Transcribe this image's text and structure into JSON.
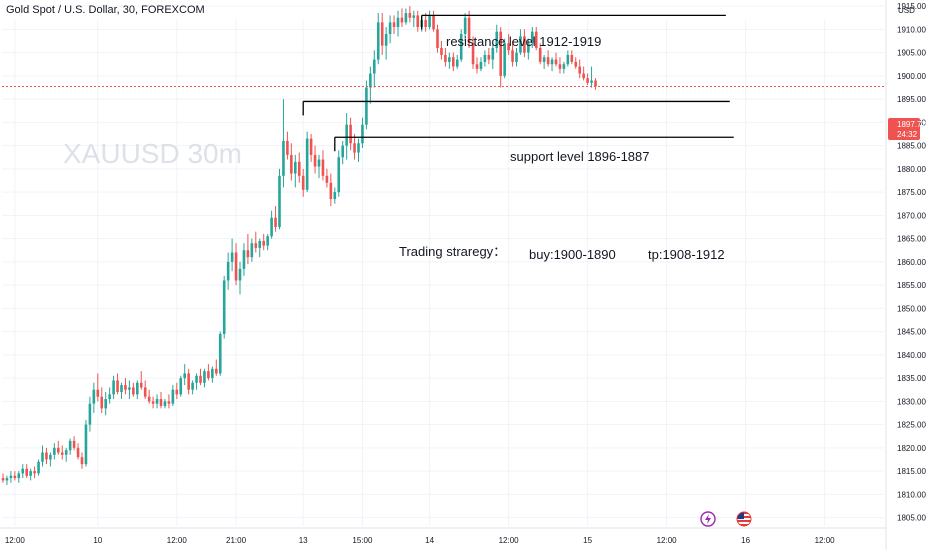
{
  "header": {
    "symbol_title": "Gold Spot / U.S. Dollar, 30, FOREXCOM"
  },
  "watermark": "XAUUSD 30m",
  "price_axis": {
    "currency": "USD",
    "current_price": "1897.72",
    "countdown": "24:32"
  },
  "annotations": {
    "resistance": "resistance level  1912-1919",
    "support": "support level  1896-1887",
    "strategy": "Trading straregy：",
    "buy": "buy:1900-1890",
    "tp": "tp:1908-1912"
  },
  "icons": [
    "lightning-icon",
    "us-flag-icon"
  ],
  "colors": {
    "up": "#26a69a",
    "down": "#ef5350",
    "grid": "#f0f3fa",
    "text": "#131722",
    "watermark": "#dde1e8",
    "price_line": "#ef5350"
  },
  "chart_data": {
    "type": "candlestick",
    "title": "Gold Spot / U.S. Dollar, 30, FOREXCOM",
    "y_ticks": [
      1805,
      1810,
      1815,
      1820,
      1825,
      1830,
      1835,
      1840,
      1845,
      1850,
      1855,
      1860,
      1865,
      1870,
      1875,
      1880,
      1885,
      1890,
      1895,
      1900,
      1905,
      1910,
      1915,
      1920
    ],
    "y_tick_labels": [
      "1805.00",
      "1810.00",
      "1815.00",
      "1820.00",
      "1825.00",
      "1830.00",
      "1835.00",
      "1840.00",
      "1845.00",
      "1850.00",
      "1855.00",
      "1860.00",
      "1865.00",
      "1870.00",
      "1875.00",
      "1880.00",
      "1885.00",
      "1890.00",
      "1895.00",
      "1900.00",
      "1905.00",
      "1910.00",
      "1915.00",
      "1920.00"
    ],
    "ylim": [
      1802,
      1925
    ],
    "x_tick_labels": [
      "12:00",
      "10",
      "12:00",
      "21:00",
      "13",
      "15:00",
      "14",
      "12:00",
      "15",
      "12:00",
      "16",
      "12:00"
    ],
    "x_tick_bar_index": [
      3,
      24,
      44,
      59,
      76,
      91,
      108,
      128,
      148,
      168,
      188,
      208
    ],
    "current_price": 1897.72,
    "levels": [
      {
        "name": "resistance",
        "price": 1913,
        "from_bar": 106,
        "to_bar": 183
      },
      {
        "name": "support_upper",
        "price": 1894.5,
        "from_bar": 76,
        "to_bar": 184
      },
      {
        "name": "support_lower",
        "price": 1886.8,
        "from_bar": 84,
        "to_bar": 185
      }
    ],
    "ohlc": [
      [
        1813.5,
        1814.5,
        1812.5,
        1813
      ],
      [
        1813,
        1814,
        1812,
        1813.5
      ],
      [
        1813.5,
        1815,
        1812.5,
        1814
      ],
      [
        1814,
        1815,
        1813,
        1813.5
      ],
      [
        1813.5,
        1815,
        1812.5,
        1814.5
      ],
      [
        1814.5,
        1816.5,
        1813.5,
        1815.5
      ],
      [
        1815.5,
        1816.5,
        1813.5,
        1814
      ],
      [
        1814,
        1815.5,
        1813,
        1815
      ],
      [
        1815,
        1816,
        1813.5,
        1814.5
      ],
      [
        1814.5,
        1817.5,
        1814,
        1817
      ],
      [
        1817,
        1820.5,
        1816,
        1819
      ],
      [
        1819,
        1820,
        1816.5,
        1817.5
      ],
      [
        1817.5,
        1819,
        1816,
        1818.5
      ],
      [
        1818.5,
        1821,
        1817.5,
        1820
      ],
      [
        1820,
        1821.5,
        1818.5,
        1819
      ],
      [
        1819,
        1820.5,
        1817.5,
        1818.5
      ],
      [
        1818.5,
        1820,
        1817,
        1819.5
      ],
      [
        1819.5,
        1822,
        1818.5,
        1821.5
      ],
      [
        1821.5,
        1822.5,
        1819.5,
        1820
      ],
      [
        1820,
        1821,
        1817.5,
        1818
      ],
      [
        1818,
        1819,
        1815.5,
        1816.5
      ],
      [
        1816.5,
        1826,
        1816,
        1825
      ],
      [
        1825,
        1831,
        1823.5,
        1829.5
      ],
      [
        1829.5,
        1834,
        1827.5,
        1832.5
      ],
      [
        1832.5,
        1836,
        1830,
        1831
      ],
      [
        1831,
        1833,
        1827.5,
        1828.5
      ],
      [
        1828.5,
        1832,
        1827,
        1830.5
      ],
      [
        1830.5,
        1833,
        1829.5,
        1831.5
      ],
      [
        1831.5,
        1835.5,
        1830.5,
        1834.5
      ],
      [
        1834.5,
        1836,
        1831.5,
        1832
      ],
      [
        1832,
        1834,
        1830.5,
        1833.5
      ],
      [
        1833.5,
        1835,
        1831.5,
        1832.5
      ],
      [
        1832.5,
        1834.5,
        1830.5,
        1833
      ],
      [
        1833,
        1834,
        1831,
        1831.5
      ],
      [
        1831.5,
        1834.5,
        1830.5,
        1834
      ],
      [
        1834,
        1836.5,
        1832.5,
        1833
      ],
      [
        1833,
        1834.5,
        1830.5,
        1831
      ],
      [
        1831,
        1832.5,
        1829.5,
        1830
      ],
      [
        1830,
        1831,
        1828.5,
        1829.5
      ],
      [
        1829.5,
        1831.5,
        1828.5,
        1830.5
      ],
      [
        1830.5,
        1832,
        1828.5,
        1829
      ],
      [
        1829,
        1830.5,
        1828.5,
        1830
      ],
      [
        1830,
        1831.5,
        1828.5,
        1829.5
      ],
      [
        1829.5,
        1833.5,
        1829,
        1832.5
      ],
      [
        1832.5,
        1834,
        1830.5,
        1831.5
      ],
      [
        1831.5,
        1835.5,
        1831,
        1835
      ],
      [
        1835,
        1838,
        1833.5,
        1836
      ],
      [
        1836,
        1837,
        1831.5,
        1832.5
      ],
      [
        1832.5,
        1834.5,
        1831.5,
        1834
      ],
      [
        1834,
        1836,
        1832.5,
        1835.5
      ],
      [
        1835.5,
        1837,
        1833.5,
        1834
      ],
      [
        1834,
        1837,
        1833,
        1836.5
      ],
      [
        1836.5,
        1838,
        1834.5,
        1835
      ],
      [
        1835,
        1837.5,
        1834,
        1837
      ],
      [
        1837,
        1839,
        1835.5,
        1836
      ],
      [
        1836,
        1845,
        1835.5,
        1844.5
      ],
      [
        1844.5,
        1857,
        1843.5,
        1856
      ],
      [
        1856,
        1862,
        1854,
        1860
      ],
      [
        1860,
        1865,
        1858,
        1862
      ],
      [
        1862,
        1864,
        1855,
        1856
      ],
      [
        1856,
        1860,
        1853,
        1858.5
      ],
      [
        1858.5,
        1864,
        1857,
        1862.5
      ],
      [
        1862.5,
        1866,
        1859.5,
        1861
      ],
      [
        1861,
        1865,
        1860,
        1864
      ],
      [
        1864,
        1866.5,
        1862,
        1863
      ],
      [
        1863,
        1865,
        1861,
        1864.5
      ],
      [
        1864.5,
        1866,
        1862.5,
        1863.5
      ],
      [
        1863.5,
        1866,
        1862.5,
        1865.5
      ],
      [
        1865.5,
        1871,
        1865,
        1869.5
      ],
      [
        1869.5,
        1872,
        1866.5,
        1867.5
      ],
      [
        1867.5,
        1880,
        1867,
        1878.5
      ],
      [
        1878.5,
        1895,
        1876,
        1886
      ],
      [
        1886,
        1888,
        1882,
        1883
      ],
      [
        1883,
        1885.5,
        1877.5,
        1879
      ],
      [
        1879,
        1883,
        1876,
        1881.5
      ],
      [
        1881.5,
        1883.5,
        1877,
        1878.5
      ],
      [
        1878.5,
        1880,
        1874,
        1875.5
      ],
      [
        1875.5,
        1888,
        1875,
        1886.5
      ],
      [
        1886.5,
        1887.5,
        1881.5,
        1883
      ],
      [
        1883,
        1885,
        1879,
        1880.5
      ],
      [
        1880.5,
        1883,
        1878,
        1882
      ],
      [
        1882,
        1884,
        1877.5,
        1878.5
      ],
      [
        1878.5,
        1880,
        1876,
        1877
      ],
      [
        1877,
        1879,
        1872,
        1873.5
      ],
      [
        1873.5,
        1876,
        1872.5,
        1875
      ],
      [
        1875,
        1884,
        1874,
        1882.5
      ],
      [
        1882.5,
        1886,
        1881,
        1885
      ],
      [
        1885,
        1892,
        1882,
        1889.5
      ],
      [
        1889.5,
        1891,
        1884,
        1885.5
      ],
      [
        1885.5,
        1887.5,
        1882,
        1883.5
      ],
      [
        1883.5,
        1886.5,
        1881.5,
        1885.5
      ],
      [
        1885.5,
        1891,
        1884.5,
        1889.5
      ],
      [
        1889.5,
        1899,
        1888.5,
        1897.5
      ],
      [
        1897.5,
        1902,
        1894,
        1900.5
      ],
      [
        1900.5,
        1905.5,
        1897.5,
        1903.5
      ],
      [
        1903.5,
        1913.5,
        1902.5,
        1911.5
      ],
      [
        1911.5,
        1913.5,
        1904.5,
        1906.5
      ],
      [
        1906.5,
        1910.5,
        1903.5,
        1909
      ],
      [
        1909,
        1913,
        1907,
        1911.5
      ],
      [
        1911.5,
        1913,
        1909,
        1910.5
      ],
      [
        1910.5,
        1914,
        1908.5,
        1912.5
      ],
      [
        1912.5,
        1914.5,
        1910.5,
        1911.5
      ],
      [
        1911.5,
        1914.5,
        1911,
        1913.5
      ],
      [
        1913.5,
        1915,
        1911.5,
        1912.5
      ],
      [
        1912.5,
        1914,
        1910.5,
        1913
      ],
      [
        1913,
        1914,
        1909.5,
        1910.5
      ],
      [
        1910.5,
        1913,
        1909.5,
        1912
      ],
      [
        1912,
        1913.5,
        1909.5,
        1910.5
      ],
      [
        1910.5,
        1914,
        1910,
        1913
      ],
      [
        1913,
        1914,
        1909.5,
        1910
      ],
      [
        1910,
        1911,
        1905,
        1906
      ],
      [
        1906,
        1907.5,
        1903.5,
        1904.5
      ],
      [
        1904.5,
        1906,
        1902,
        1903
      ],
      [
        1903,
        1905,
        1901.5,
        1904
      ],
      [
        1904,
        1905,
        1901,
        1902
      ],
      [
        1902,
        1904.5,
        1901.5,
        1903.5
      ],
      [
        1903.5,
        1910,
        1903,
        1909
      ],
      [
        1909,
        1913.5,
        1907.5,
        1912.5
      ],
      [
        1912.5,
        1914,
        1906,
        1907
      ],
      [
        1907,
        1908.5,
        1901.5,
        1902.5
      ],
      [
        1902.5,
        1904,
        1900.5,
        1901.5
      ],
      [
        1901.5,
        1904,
        1901,
        1903
      ],
      [
        1903,
        1905.5,
        1902,
        1904.5
      ],
      [
        1904.5,
        1906,
        1902.5,
        1903.5
      ],
      [
        1903.5,
        1907,
        1901.5,
        1906
      ],
      [
        1906,
        1911,
        1905,
        1909.5
      ],
      [
        1909.5,
        1910.5,
        1897.5,
        1900
      ],
      [
        1900,
        1908,
        1899.5,
        1907
      ],
      [
        1907,
        1909,
        1904.5,
        1905.5
      ],
      [
        1905.5,
        1907.5,
        1902,
        1903
      ],
      [
        1903,
        1906,
        1902,
        1905
      ],
      [
        1905,
        1910,
        1904.5,
        1908.5
      ],
      [
        1908.5,
        1910,
        1904,
        1905
      ],
      [
        1905,
        1908,
        1903.5,
        1907
      ],
      [
        1907,
        1910.5,
        1906,
        1909.5
      ],
      [
        1909.5,
        1910.5,
        1905.5,
        1906
      ],
      [
        1906,
        1907,
        1902.5,
        1903
      ],
      [
        1903,
        1904.5,
        1901.5,
        1904
      ],
      [
        1904,
        1905.5,
        1902,
        1902.5
      ],
      [
        1902.5,
        1904,
        1901,
        1903.5
      ],
      [
        1903.5,
        1905,
        1902,
        1902.5
      ],
      [
        1902.5,
        1904,
        1900.5,
        1901.5
      ],
      [
        1901.5,
        1903,
        1900.5,
        1902.5
      ],
      [
        1902.5,
        1905.5,
        1902,
        1904.5
      ],
      [
        1904.5,
        1905.5,
        1902.5,
        1903
      ],
      [
        1903,
        1904,
        1901.5,
        1902
      ],
      [
        1902,
        1903.5,
        1899.5,
        1900.5
      ],
      [
        1900.5,
        1902,
        1899,
        1899.5
      ],
      [
        1899.5,
        1900.5,
        1898,
        1898.5
      ],
      [
        1898.5,
        1902,
        1897.5,
        1899
      ],
      [
        1899,
        1899.5,
        1897,
        1897.72
      ]
    ]
  }
}
